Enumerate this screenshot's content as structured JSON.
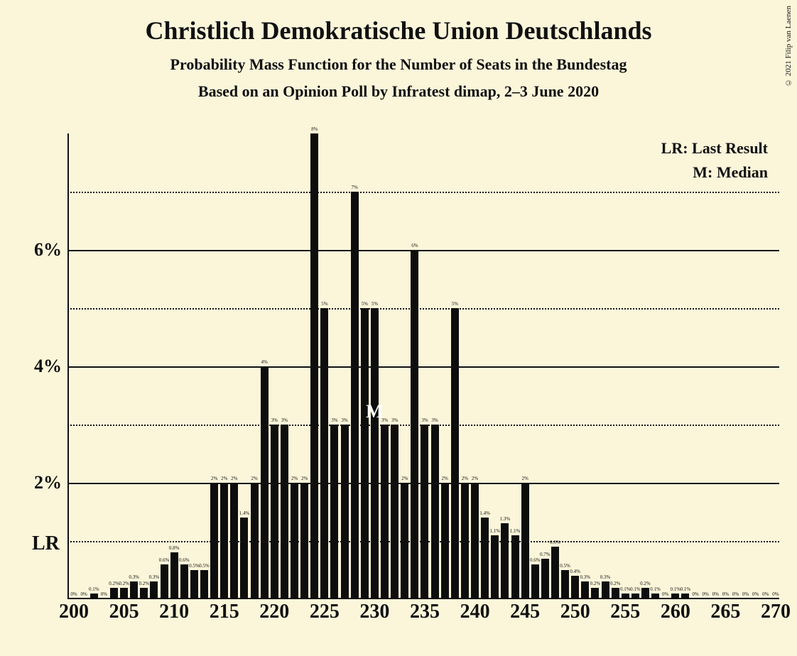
{
  "title": "Christlich Demokratische Union Deutschlands",
  "subtitle": "Probability Mass Function for the Number of Seats in the Bundestag",
  "subtitle2": "Based on an Opinion Poll by Infratest dimap, 2–3 June 2020",
  "copyright": "© 2021 Filip van Laenen",
  "legend": {
    "lr": "LR: Last Result",
    "m": "M: Median"
  },
  "chart": {
    "type": "histogram",
    "background_color": "#fbf6da",
    "bar_color": "#0d0d0d",
    "axis_color": "#111111",
    "grid_color": "#111111",
    "xmin": 200,
    "xmax": 270,
    "ymin": 0,
    "ymax": 8,
    "y_ticks_major": [
      2,
      4,
      6
    ],
    "y_ticks_minor": [
      1,
      3,
      5,
      7
    ],
    "x_ticks": [
      200,
      205,
      210,
      215,
      220,
      225,
      230,
      235,
      240,
      245,
      250,
      255,
      260,
      265,
      270
    ],
    "lr_value": 200,
    "median_value": 230,
    "bar_width_ratio": 0.78,
    "bars": [
      {
        "x": 200,
        "v": 0,
        "l": "0%"
      },
      {
        "x": 201,
        "v": 0,
        "l": "0%"
      },
      {
        "x": 202,
        "v": 0.1,
        "l": "0.1%"
      },
      {
        "x": 203,
        "v": 0,
        "l": "0%"
      },
      {
        "x": 204,
        "v": 0.2,
        "l": "0.2%"
      },
      {
        "x": 205,
        "v": 0.2,
        "l": "0.2%"
      },
      {
        "x": 206,
        "v": 0.3,
        "l": "0.3%"
      },
      {
        "x": 207,
        "v": 0.2,
        "l": "0.2%"
      },
      {
        "x": 208,
        "v": 0.3,
        "l": "0.3%"
      },
      {
        "x": 209,
        "v": 0.6,
        "l": "0.6%"
      },
      {
        "x": 210,
        "v": 0.8,
        "l": "0.8%"
      },
      {
        "x": 211,
        "v": 0.6,
        "l": "0.6%"
      },
      {
        "x": 212,
        "v": 0.5,
        "l": "0.5%"
      },
      {
        "x": 213,
        "v": 0.5,
        "l": "0.5%"
      },
      {
        "x": 214,
        "v": 2,
        "l": "2%"
      },
      {
        "x": 215,
        "v": 2,
        "l": "2%"
      },
      {
        "x": 216,
        "v": 2,
        "l": "2%"
      },
      {
        "x": 217,
        "v": 1.4,
        "l": "1.4%"
      },
      {
        "x": 218,
        "v": 2,
        "l": "2%"
      },
      {
        "x": 219,
        "v": 4,
        "l": "4%"
      },
      {
        "x": 220,
        "v": 3,
        "l": "3%"
      },
      {
        "x": 221,
        "v": 3,
        "l": "3%"
      },
      {
        "x": 222,
        "v": 2,
        "l": "2%"
      },
      {
        "x": 223,
        "v": 2,
        "l": "2%"
      },
      {
        "x": 224,
        "v": 8,
        "l": "8%"
      },
      {
        "x": 225,
        "v": 5,
        "l": "5%"
      },
      {
        "x": 226,
        "v": 3,
        "l": "3%"
      },
      {
        "x": 227,
        "v": 3,
        "l": "3%"
      },
      {
        "x": 228,
        "v": 7,
        "l": "7%"
      },
      {
        "x": 229,
        "v": 5,
        "l": "5%"
      },
      {
        "x": 230,
        "v": 5,
        "l": "5%"
      },
      {
        "x": 231,
        "v": 3,
        "l": "3%"
      },
      {
        "x": 232,
        "v": 3,
        "l": "3%"
      },
      {
        "x": 233,
        "v": 2,
        "l": "2%"
      },
      {
        "x": 234,
        "v": 6,
        "l": "6%"
      },
      {
        "x": 235,
        "v": 3,
        "l": "3%"
      },
      {
        "x": 236,
        "v": 3,
        "l": "3%"
      },
      {
        "x": 237,
        "v": 2,
        "l": "2%"
      },
      {
        "x": 238,
        "v": 5,
        "l": "5%"
      },
      {
        "x": 239,
        "v": 2,
        "l": "2%"
      },
      {
        "x": 240,
        "v": 2,
        "l": "2%"
      },
      {
        "x": 241,
        "v": 1.4,
        "l": "1.4%"
      },
      {
        "x": 242,
        "v": 1.1,
        "l": "1.1%"
      },
      {
        "x": 243,
        "v": 1.3,
        "l": "1.3%"
      },
      {
        "x": 244,
        "v": 1.1,
        "l": "1.1%"
      },
      {
        "x": 245,
        "v": 2,
        "l": "2%"
      },
      {
        "x": 246,
        "v": 0.6,
        "l": "0.6%"
      },
      {
        "x": 247,
        "v": 0.7,
        "l": "0.7%"
      },
      {
        "x": 248,
        "v": 0.9,
        "l": "0.9%"
      },
      {
        "x": 249,
        "v": 0.5,
        "l": "0.5%"
      },
      {
        "x": 250,
        "v": 0.4,
        "l": "0.4%"
      },
      {
        "x": 251,
        "v": 0.3,
        "l": "0.3%"
      },
      {
        "x": 252,
        "v": 0.2,
        "l": "0.2%"
      },
      {
        "x": 253,
        "v": 0.3,
        "l": "0.3%"
      },
      {
        "x": 254,
        "v": 0.2,
        "l": "0.2%"
      },
      {
        "x": 255,
        "v": 0.1,
        "l": "0.1%"
      },
      {
        "x": 256,
        "v": 0.1,
        "l": "0.1%"
      },
      {
        "x": 257,
        "v": 0.2,
        "l": "0.2%"
      },
      {
        "x": 258,
        "v": 0.1,
        "l": "0.1%"
      },
      {
        "x": 259,
        "v": 0,
        "l": "0%"
      },
      {
        "x": 260,
        "v": 0.1,
        "l": "0.1%"
      },
      {
        "x": 261,
        "v": 0.1,
        "l": "0.1%"
      },
      {
        "x": 262,
        "v": 0,
        "l": "0%"
      },
      {
        "x": 263,
        "v": 0,
        "l": "0%"
      },
      {
        "x": 264,
        "v": 0,
        "l": "0%"
      },
      {
        "x": 265,
        "v": 0,
        "l": "0%"
      },
      {
        "x": 266,
        "v": 0,
        "l": "0%"
      },
      {
        "x": 267,
        "v": 0,
        "l": "0%"
      },
      {
        "x": 268,
        "v": 0,
        "l": "0%"
      },
      {
        "x": 269,
        "v": 0,
        "l": "0%"
      },
      {
        "x": 270,
        "v": 0,
        "l": "0%"
      }
    ]
  }
}
